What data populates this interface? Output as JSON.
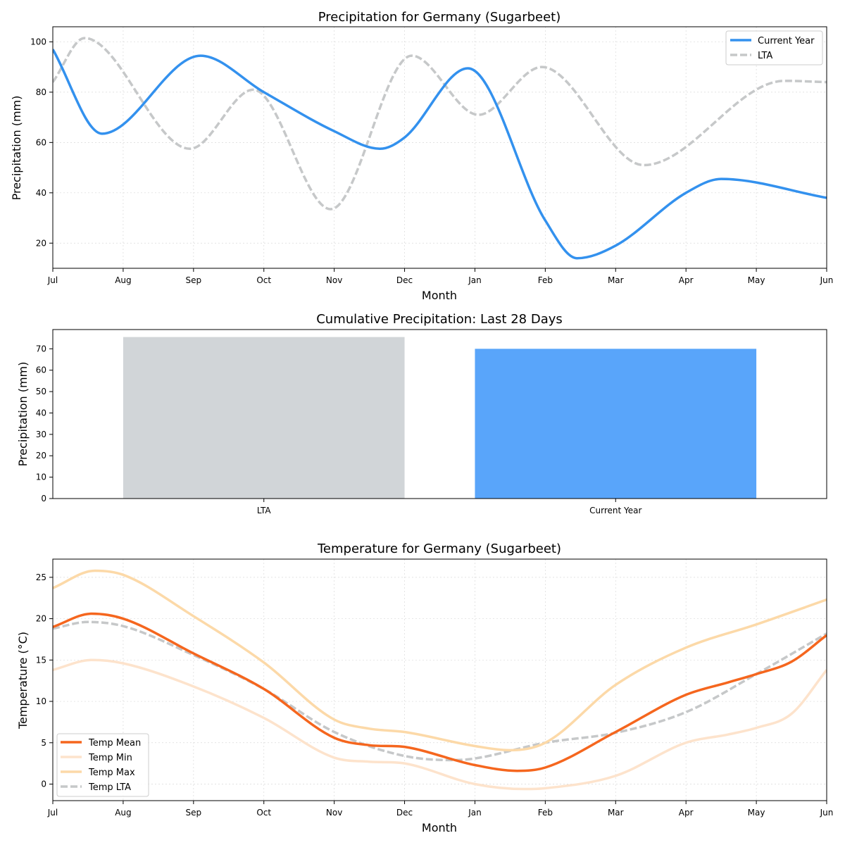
{
  "chart_data": [
    {
      "type": "line",
      "title": "Precipitation for Germany (Sugarbeet)",
      "xlabel": "Month",
      "ylabel": "Precipitation (mm)",
      "categories": [
        "Jul",
        "Aug",
        "Sep",
        "Oct",
        "Nov",
        "Dec",
        "Jan",
        "Feb",
        "Mar",
        "Apr",
        "May",
        "Jun"
      ],
      "x": [
        0,
        0.7,
        2.1,
        3,
        4,
        4.65,
        5,
        5.9,
        7,
        7.45,
        8,
        9,
        9.5,
        11
      ],
      "ylim": [
        10,
        106
      ],
      "yticks": [
        20,
        40,
        60,
        80,
        100
      ],
      "xlim": [
        0,
        11
      ],
      "grid": true,
      "legend": "top-right",
      "series": [
        {
          "name": "Current Year",
          "color": "#3391ee",
          "style": "solid",
          "x": [
            0,
            0.7,
            2.1,
            3,
            4,
            4.65,
            5,
            5.9,
            7,
            7.45,
            8,
            9,
            9.5,
            11
          ],
          "values": [
            97,
            63.5,
            94.5,
            80,
            64.5,
            57.5,
            62,
            89.5,
            29,
            14,
            19,
            40,
            45.5,
            38
          ]
        },
        {
          "name": "LTA",
          "color": "#c6c8c9",
          "style": "dashed",
          "x": [
            0,
            0.45,
            1.95,
            2.85,
            3.95,
            5.1,
            6.05,
            6.95,
            8.4,
            10.4,
            11
          ],
          "values": [
            84,
            101.5,
            57.5,
            81,
            33.5,
            94.5,
            71,
            90,
            51,
            84.5,
            84
          ]
        }
      ]
    },
    {
      "type": "bar",
      "title": "Cumulative Precipitation: Last 28 Days",
      "xlabel": "",
      "ylabel": "Precipitation (mm)",
      "categories": [
        "LTA",
        "Current Year"
      ],
      "values": [
        75.5,
        70
      ],
      "colors": [
        "#d1d5d8",
        "#59a5fa"
      ],
      "ylim": [
        0,
        79
      ],
      "yticks": [
        0,
        10,
        20,
        30,
        40,
        50,
        60,
        70
      ]
    },
    {
      "type": "line",
      "title": "Temperature for Germany (Sugarbeet)",
      "xlabel": "Month",
      "ylabel": "Temperature (°C)",
      "categories": [
        "Jul",
        "Aug",
        "Sep",
        "Oct",
        "Nov",
        "Dec",
        "Jan",
        "Feb",
        "Mar",
        "Apr",
        "May",
        "Jun"
      ],
      "ylim": [
        -2,
        27.2
      ],
      "yticks": [
        0,
        5,
        10,
        15,
        20,
        25
      ],
      "xlim": [
        0,
        11
      ],
      "grid": true,
      "legend": "lower-left",
      "series": [
        {
          "name": "Temp Mean",
          "color": "#f5661e",
          "style": "solid",
          "x": [
            0,
            0.55,
            1,
            2,
            3,
            4,
            4.5,
            5,
            6,
            6.6,
            7,
            8,
            9,
            9.6,
            10,
            10.5,
            11
          ],
          "values": [
            19,
            20.6,
            20,
            15.8,
            11.5,
            5.6,
            4.7,
            4.5,
            2.3,
            1.6,
            2,
            6.3,
            10.8,
            12.3,
            13.3,
            14.8,
            18
          ]
        },
        {
          "name": "Temp Min",
          "color": "#fde3cc",
          "style": "solid",
          "x": [
            0,
            0.55,
            1,
            2,
            3,
            4,
            4.5,
            5,
            6,
            6.7,
            7,
            8,
            9,
            9.6,
            10,
            10.5,
            11
          ],
          "values": [
            13.8,
            15,
            14.6,
            11.8,
            8,
            3.2,
            2.7,
            2.5,
            0,
            -0.6,
            -0.5,
            1,
            5,
            6,
            6.8,
            8.5,
            13.8
          ]
        },
        {
          "name": "Temp Max",
          "color": "#fcd9a8",
          "style": "solid",
          "x": [
            0,
            0.6,
            1,
            2,
            3,
            4,
            4.5,
            5,
            6,
            6.5,
            7,
            8,
            9,
            10,
            11
          ],
          "values": [
            23.7,
            25.8,
            25.3,
            20.3,
            14.7,
            7.8,
            6.7,
            6.3,
            4.6,
            4.1,
            5,
            12,
            16.5,
            19.3,
            22.3
          ]
        },
        {
          "name": "Temp LTA",
          "color": "#c6c8c9",
          "style": "dashed",
          "x": [
            0,
            0.5,
            1,
            2,
            3,
            4,
            5,
            5.7,
            6,
            7,
            8,
            9,
            10,
            11
          ],
          "values": [
            18.8,
            19.6,
            19.1,
            15.6,
            11.5,
            6.3,
            3.4,
            2.9,
            3.1,
            5,
            6.2,
            8.7,
            13.3,
            18.2
          ]
        }
      ]
    }
  ]
}
